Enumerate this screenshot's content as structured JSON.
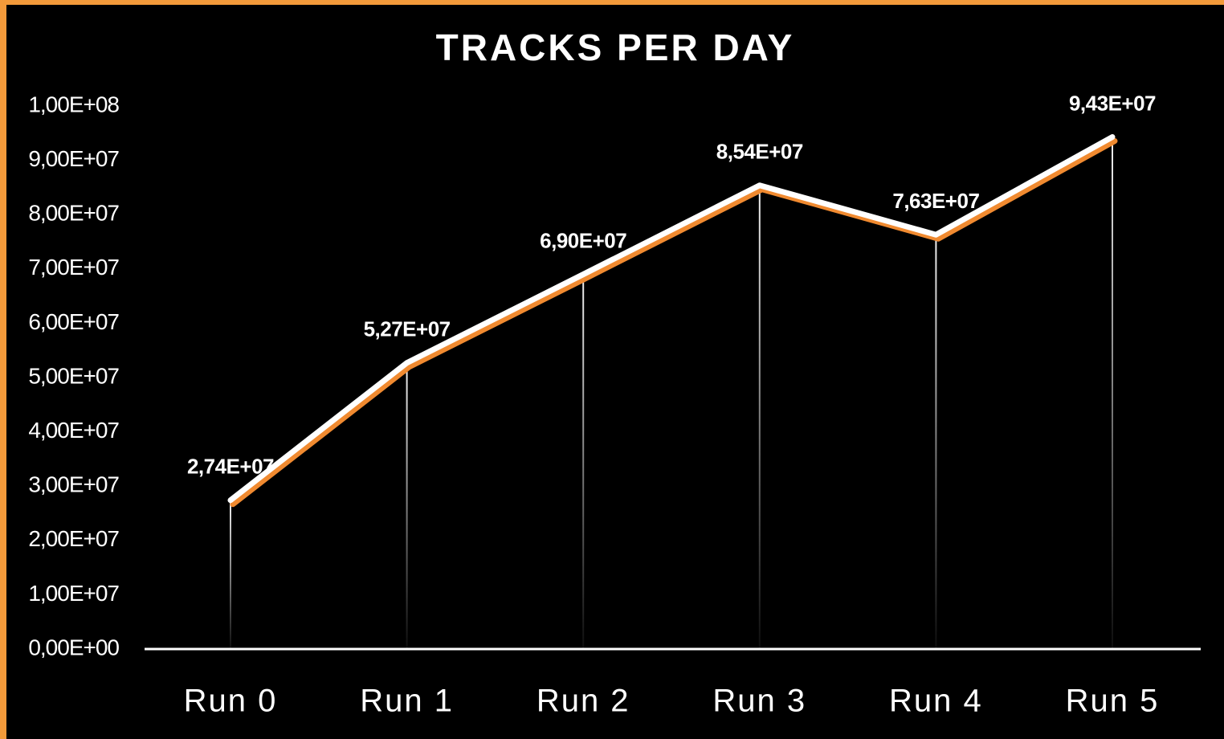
{
  "chart_data": {
    "type": "line",
    "title": "TRACKS PER DAY",
    "categories": [
      "Run 0",
      "Run 1",
      "Run 2",
      "Run 3",
      "Run 4",
      "Run 5"
    ],
    "series": [
      {
        "color": "#ffffff",
        "shadow_color": "#f08a30",
        "values": [
          27400000,
          52700000,
          69000000,
          85400000,
          76300000,
          94300000
        ],
        "value_labels": [
          "2,74E+07",
          "5,27E+07",
          "6,90E+07",
          "8,54E+07",
          "7,63E+07",
          "9,43E+07"
        ]
      }
    ],
    "ylim": [
      0,
      100000000
    ],
    "yticks": [
      {
        "value": 0,
        "label": "0,00E+00"
      },
      {
        "value": 10000000,
        "label": "1,00E+07"
      },
      {
        "value": 20000000,
        "label": "2,00E+07"
      },
      {
        "value": 30000000,
        "label": "3,00E+07"
      },
      {
        "value": 40000000,
        "label": "4,00E+07"
      },
      {
        "value": 50000000,
        "label": "5,00E+07"
      },
      {
        "value": 60000000,
        "label": "6,00E+07"
      },
      {
        "value": 70000000,
        "label": "7,00E+07"
      },
      {
        "value": 80000000,
        "label": "8,00E+07"
      },
      {
        "value": 90000000,
        "label": "9,00E+07"
      },
      {
        "value": 100000000,
        "label": "1,00E+08"
      }
    ],
    "grid": false,
    "drop_lines": true
  }
}
